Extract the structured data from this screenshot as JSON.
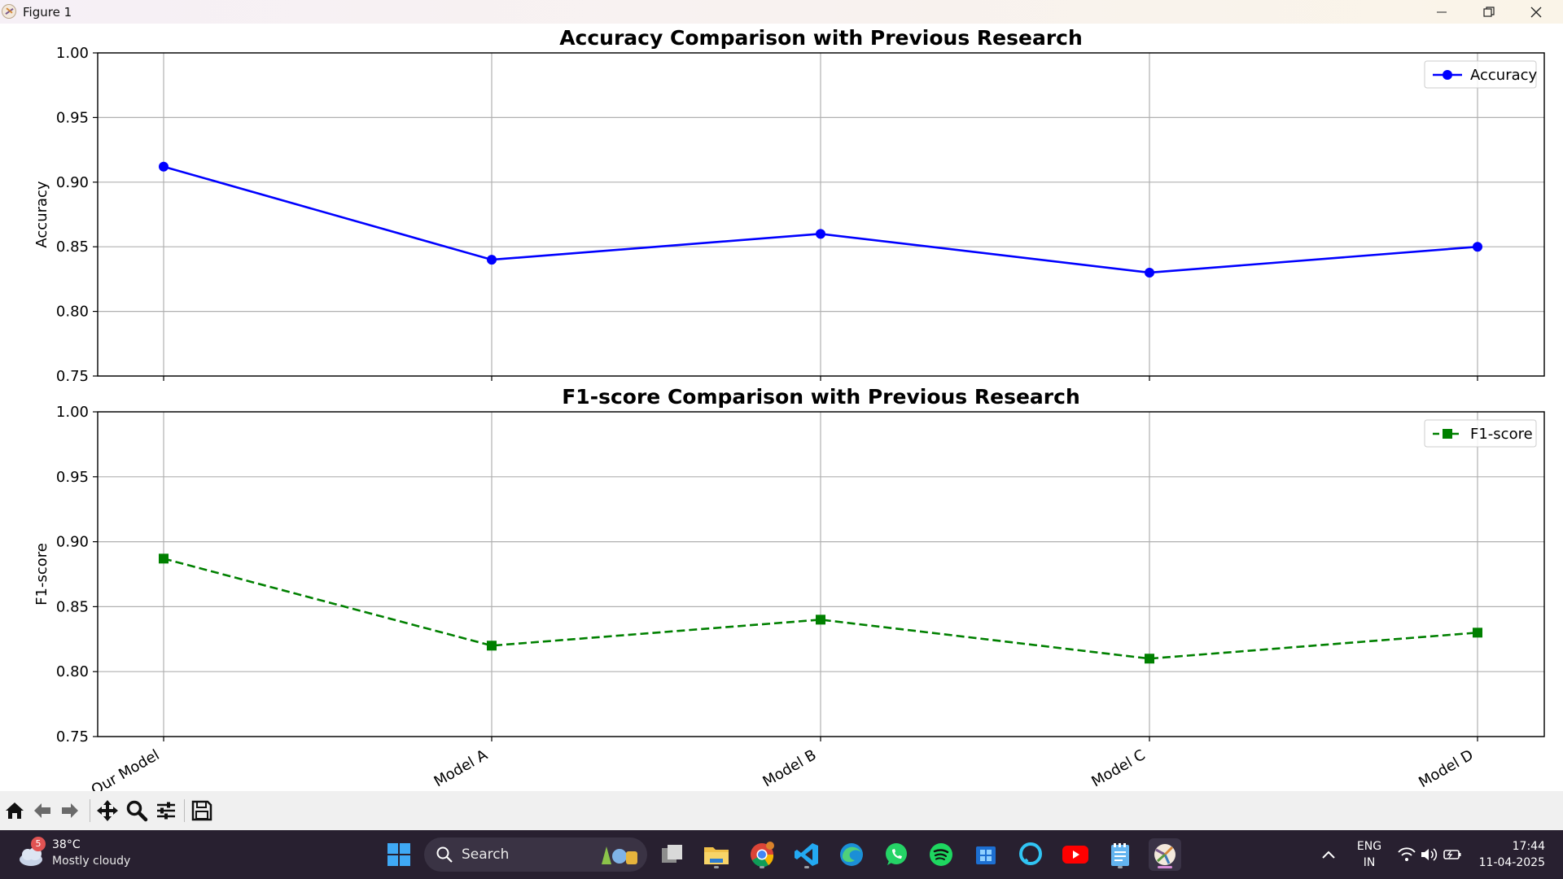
{
  "window": {
    "title": "Figure 1",
    "minimize_label": "Minimize",
    "maximize_label": "Restore",
    "close_label": "Close"
  },
  "chart_data": [
    {
      "type": "line",
      "title": "Accuracy Comparison with Previous Research",
      "xlabel": "",
      "ylabel": "Accuracy",
      "categories": [
        "Our Model",
        "Model A",
        "Model B",
        "Model C",
        "Model D"
      ],
      "series": [
        {
          "name": "Accuracy",
          "values": [
            0.912,
            0.84,
            0.86,
            0.83,
            0.85
          ],
          "color": "#0000ff",
          "marker": "circle",
          "linestyle": "solid"
        }
      ],
      "ylim": [
        0.75,
        1.0
      ],
      "yticks": [
        "0.75",
        "0.80",
        "0.85",
        "0.90",
        "0.95",
        "1.00"
      ],
      "grid": true,
      "legend": "top-right",
      "show_xticklabels": false
    },
    {
      "type": "line",
      "title": "F1-score Comparison with Previous Research",
      "xlabel": "",
      "ylabel": "F1-score",
      "categories": [
        "Our Model",
        "Model A",
        "Model B",
        "Model C",
        "Model D"
      ],
      "series": [
        {
          "name": "F1-score",
          "values": [
            0.887,
            0.82,
            0.84,
            0.81,
            0.83
          ],
          "color": "#008000",
          "marker": "square",
          "linestyle": "dashed"
        }
      ],
      "ylim": [
        0.75,
        1.0
      ],
      "yticks": [
        "0.75",
        "0.80",
        "0.85",
        "0.90",
        "0.95",
        "1.00"
      ],
      "grid": true,
      "legend": "top-right",
      "show_xticklabels": true
    }
  ],
  "toolbar": {
    "buttons": [
      "home-icon",
      "back-icon",
      "forward-icon",
      "pan-icon",
      "zoom-icon",
      "configure-subplots-icon",
      "save-icon"
    ]
  },
  "taskbar": {
    "weather": {
      "badge": "5",
      "temperature": "38°C",
      "condition": "Mostly cloudy"
    },
    "search_label": "Search",
    "apps": [
      "start-icon",
      "task-view-icon",
      "file-explorer-icon",
      "chrome-icon",
      "vscode-icon",
      "edge-icon",
      "whatsapp-icon",
      "spotify-icon",
      "store-icon",
      "alexa-icon",
      "youtube-icon",
      "notepad-icon",
      "matplotlib-icon"
    ],
    "tray": {
      "lang_top": "ENG",
      "lang_bottom": "IN",
      "time": "17:44",
      "date": "11-04-2025"
    }
  }
}
